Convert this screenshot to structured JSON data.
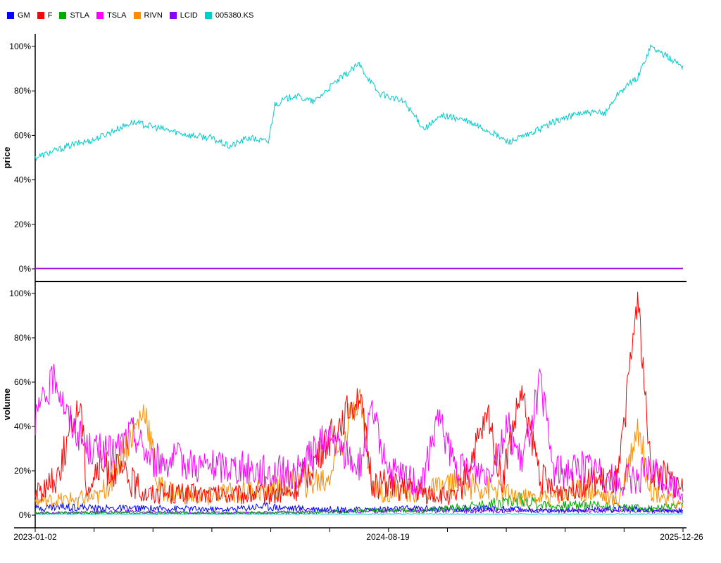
{
  "chart_data": {
    "type": "line",
    "x_start": "2023-01-02",
    "x_end": "2025-12-26",
    "x_ticks": [
      "2023-01-02",
      "2024-08-19",
      "2025-12-26"
    ],
    "legend_position": "top-left",
    "grid": false,
    "legend": [
      {
        "name": "GM",
        "color": "#0000ff"
      },
      {
        "name": "F",
        "color": "#ff0000"
      },
      {
        "name": "STLA",
        "color": "#00aa00"
      },
      {
        "name": "TSLA",
        "color": "#ff00ff"
      },
      {
        "name": "RIVN",
        "color": "#ff8c00"
      },
      {
        "name": "LCID",
        "color": "#8800ff"
      },
      {
        "name": "005380.KS",
        "color": "#00cccc"
      }
    ],
    "panels": [
      {
        "ylabel": "price",
        "ylim": [
          0,
          100
        ],
        "yticks": [
          "0%",
          "20%",
          "40%",
          "60%",
          "80%",
          "100%"
        ],
        "series": [
          {
            "name": "005380.KS",
            "color": "#00cccc",
            "values": [
              [
                0,
                50
              ],
              [
                0.03,
                53
              ],
              [
                0.06,
                56
              ],
              [
                0.09,
                58
              ],
              [
                0.12,
                62
              ],
              [
                0.15,
                66
              ],
              [
                0.18,
                64
              ],
              [
                0.21,
                62
              ],
              [
                0.24,
                60
              ],
              [
                0.27,
                59
              ],
              [
                0.3,
                55
              ],
              [
                0.33,
                59
              ],
              [
                0.36,
                57
              ],
              [
                0.37,
                74
              ],
              [
                0.4,
                78
              ],
              [
                0.43,
                75
              ],
              [
                0.46,
                83
              ],
              [
                0.5,
                92
              ],
              [
                0.53,
                79
              ],
              [
                0.57,
                75
              ],
              [
                0.6,
                63
              ],
              [
                0.63,
                69
              ],
              [
                0.66,
                67
              ],
              [
                0.7,
                62
              ],
              [
                0.73,
                57
              ],
              [
                0.76,
                60
              ],
              [
                0.8,
                66
              ],
              [
                0.84,
                70
              ],
              [
                0.88,
                70
              ],
              [
                0.9,
                79
              ],
              [
                0.93,
                86
              ],
              [
                0.95,
                100
              ],
              [
                1.0,
                91
              ]
            ]
          },
          {
            "name": "GM",
            "color": "#0000ff",
            "values": [
              [
                0,
                0.2
              ],
              [
                1,
                0.2
              ]
            ]
          },
          {
            "name": "F",
            "color": "#ff0000",
            "values": [
              [
                0,
                0.1
              ],
              [
                1,
                0.1
              ]
            ]
          },
          {
            "name": "STLA",
            "color": "#00aa00",
            "values": [
              [
                0,
                0.2
              ],
              [
                1,
                0.2
              ]
            ]
          },
          {
            "name": "TSLA",
            "color": "#ff00ff",
            "values": [
              [
                0,
                0.3
              ],
              [
                1,
                0.3
              ]
            ]
          },
          {
            "name": "RIVN",
            "color": "#ff8c00",
            "values": [
              [
                0,
                0.1
              ],
              [
                1,
                0.1
              ]
            ]
          },
          {
            "name": "LCID",
            "color": "#8800ff",
            "values": [
              [
                0,
                0.1
              ],
              [
                1,
                0.1
              ]
            ]
          }
        ]
      },
      {
        "ylabel": "volume",
        "ylim": [
          0,
          100
        ],
        "yticks": [
          "0%",
          "20%",
          "40%",
          "60%",
          "80%",
          "100%"
        ],
        "series": [
          {
            "name": "005380.KS",
            "color": "#00cccc",
            "values": [
              [
                0,
                0.5
              ],
              [
                1,
                0.5
              ]
            ]
          },
          {
            "name": "LCID",
            "color": "#8800ff",
            "values": [
              [
                0,
                1
              ],
              [
                0.15,
                1.5
              ],
              [
                0.3,
                1
              ],
              [
                0.45,
                1.5
              ],
              [
                0.6,
                2
              ],
              [
                0.75,
                2
              ],
              [
                0.9,
                2
              ],
              [
                1,
                2
              ]
            ]
          },
          {
            "name": "GM",
            "color": "#0000ff",
            "values": [
              [
                0,
                3
              ],
              [
                0.05,
                4
              ],
              [
                0.1,
                3
              ],
              [
                0.2,
                3
              ],
              [
                0.3,
                2.5
              ],
              [
                0.35,
                4
              ],
              [
                0.4,
                3
              ],
              [
                0.5,
                2.5
              ],
              [
                0.6,
                3
              ],
              [
                0.7,
                3
              ],
              [
                0.8,
                2
              ],
              [
                0.9,
                3
              ],
              [
                1,
                2
              ]
            ]
          },
          {
            "name": "STLA",
            "color": "#00aa00",
            "values": [
              [
                0,
                1
              ],
              [
                0.2,
                1
              ],
              [
                0.4,
                1
              ],
              [
                0.5,
                2
              ],
              [
                0.6,
                2
              ],
              [
                0.7,
                5
              ],
              [
                0.75,
                7
              ],
              [
                0.8,
                4
              ],
              [
                0.85,
                5
              ],
              [
                0.9,
                4
              ],
              [
                0.95,
                3
              ],
              [
                1,
                4
              ]
            ]
          },
          {
            "name": "RIVN",
            "color": "#ff8c00",
            "values": [
              [
                0,
                6
              ],
              [
                0.1,
                8
              ],
              [
                0.17,
                48
              ],
              [
                0.19,
                12
              ],
              [
                0.25,
                8
              ],
              [
                0.3,
                10
              ],
              [
                0.36,
                12
              ],
              [
                0.4,
                14
              ],
              [
                0.45,
                16
              ],
              [
                0.5,
                55
              ],
              [
                0.52,
                12
              ],
              [
                0.6,
                10
              ],
              [
                0.65,
                14
              ],
              [
                0.7,
                12
              ],
              [
                0.75,
                8
              ],
              [
                0.8,
                8
              ],
              [
                0.85,
                12
              ],
              [
                0.9,
                6
              ],
              [
                0.93,
                40
              ],
              [
                0.95,
                12
              ],
              [
                1,
                4
              ]
            ]
          },
          {
            "name": "F",
            "color": "#ff0000",
            "values": [
              [
                0,
                10
              ],
              [
                0.03,
                15
              ],
              [
                0.07,
                52
              ],
              [
                0.08,
                12
              ],
              [
                0.1,
                22
              ],
              [
                0.13,
                20
              ],
              [
                0.17,
                10
              ],
              [
                0.22,
                10
              ],
              [
                0.3,
                9
              ],
              [
                0.4,
                10
              ],
              [
                0.5,
                55
              ],
              [
                0.52,
                15
              ],
              [
                0.6,
                10
              ],
              [
                0.65,
                8
              ],
              [
                0.7,
                45
              ],
              [
                0.72,
                15
              ],
              [
                0.75,
                55
              ],
              [
                0.78,
                18
              ],
              [
                0.8,
                10
              ],
              [
                0.85,
                15
              ],
              [
                0.9,
                15
              ],
              [
                0.93,
                100
              ],
              [
                0.95,
                20
              ],
              [
                1,
                12
              ]
            ]
          },
          {
            "name": "TSLA",
            "color": "#ff00ff",
            "values": [
              [
                0,
                44
              ],
              [
                0.02,
                55
              ],
              [
                0.03,
                64
              ],
              [
                0.05,
                45
              ],
              [
                0.08,
                30
              ],
              [
                0.12,
                28
              ],
              [
                0.15,
                38
              ],
              [
                0.18,
                25
              ],
              [
                0.22,
                25
              ],
              [
                0.26,
                22
              ],
              [
                0.3,
                22
              ],
              [
                0.36,
                20
              ],
              [
                0.4,
                18
              ],
              [
                0.45,
                35
              ],
              [
                0.5,
                22
              ],
              [
                0.52,
                45
              ],
              [
                0.55,
                18
              ],
              [
                0.6,
                15
              ],
              [
                0.62,
                45
              ],
              [
                0.65,
                20
              ],
              [
                0.7,
                20
              ],
              [
                0.73,
                40
              ],
              [
                0.75,
                22
              ],
              [
                0.78,
                60
              ],
              [
                0.8,
                20
              ],
              [
                0.85,
                22
              ],
              [
                0.88,
                18
              ],
              [
                0.9,
                14
              ],
              [
                0.95,
                20
              ],
              [
                1,
                10
              ]
            ]
          }
        ]
      }
    ]
  }
}
